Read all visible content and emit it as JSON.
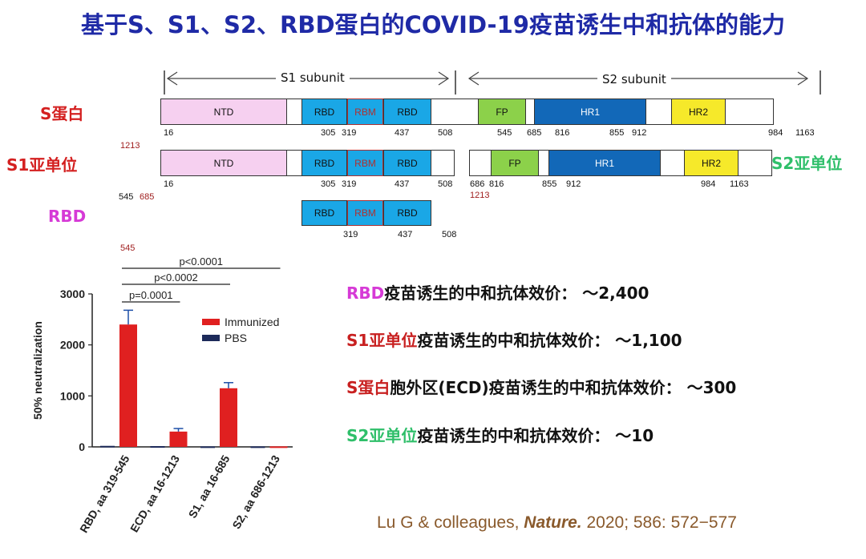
{
  "title": "基于S、S1、S2、RBD蛋白的COVID-19疫苗诱生中和抗体的能力",
  "subunits": {
    "s1": "S1 subunit",
    "s2": "S2 subunit"
  },
  "rows": {
    "s": {
      "label": "S蛋白",
      "color": "#d42020"
    },
    "s1": {
      "label": "S1亚单位",
      "color": "#d42020"
    },
    "rbd": {
      "label": "RBD",
      "color": "#d63ad6"
    },
    "s2": {
      "label": "S2亚单位",
      "color": "#2fbf6a"
    }
  },
  "domains": {
    "ntd": "NTD",
    "rbd": "RBD",
    "rbm": "RBM",
    "fp": "FP",
    "hr1": "HR1",
    "hr2": "HR2"
  },
  "positions": {
    "s": [
      "16",
      "305",
      "319",
      "437",
      "508",
      "545",
      "685",
      "816",
      "855",
      "912",
      "984",
      "1163"
    ],
    "s_end": "1213",
    "s1": [
      "16",
      "305",
      "319",
      "437",
      "508"
    ],
    "s1_extra": [
      "545",
      "685"
    ],
    "s2": [
      "686",
      "816",
      "855",
      "912",
      "984",
      "1163"
    ],
    "s2_end": "1213",
    "rbd": [
      "319",
      "437",
      "508"
    ],
    "rbd_extra": "545"
  },
  "pvals": [
    "p<0.0001",
    "p<0.0002",
    "p=0.0001"
  ],
  "chart_data": {
    "type": "bar",
    "ylabel": "50% neutralization",
    "ylim": [
      0,
      3000
    ],
    "yticks": [
      "0",
      "1000",
      "2000",
      "3000"
    ],
    "categories": [
      "RBD, aa 319-545",
      "ECD, aa 16-1213",
      "S1, aa 16-685",
      "S2, aa 686-1213"
    ],
    "series": [
      {
        "name": "Immunized",
        "color": "#e02020",
        "values": [
          2400,
          300,
          1150,
          10
        ],
        "errors": [
          280,
          60,
          110,
          0
        ]
      },
      {
        "name": "PBS",
        "color": "#1d2a5a",
        "values": [
          20,
          15,
          10,
          10
        ],
        "errors": [
          0,
          0,
          0,
          0
        ]
      }
    ]
  },
  "summary": [
    {
      "tag": "RBD",
      "tagColor": "#d63ad6",
      "text": "疫苗诱生的中和抗体效价： ～2,400"
    },
    {
      "tag": "S1亚单位",
      "tagColor": "#c82020",
      "text": "疫苗诱生的中和抗体效价： ～1,100"
    },
    {
      "tag": "S蛋白",
      "tagColor": "#c82020",
      "text": "胞外区(ECD)疫苗诱生的中和抗体效价： ～300"
    },
    {
      "tag": "S2亚单位",
      "tagColor": "#2fbf6a",
      "text": "疫苗诱生的中和抗体效价： ～10"
    }
  ],
  "citation": {
    "authors": "Lu G & colleagues, ",
    "journal": "Nature.",
    "rest": " 2020; 586: 572−577"
  }
}
